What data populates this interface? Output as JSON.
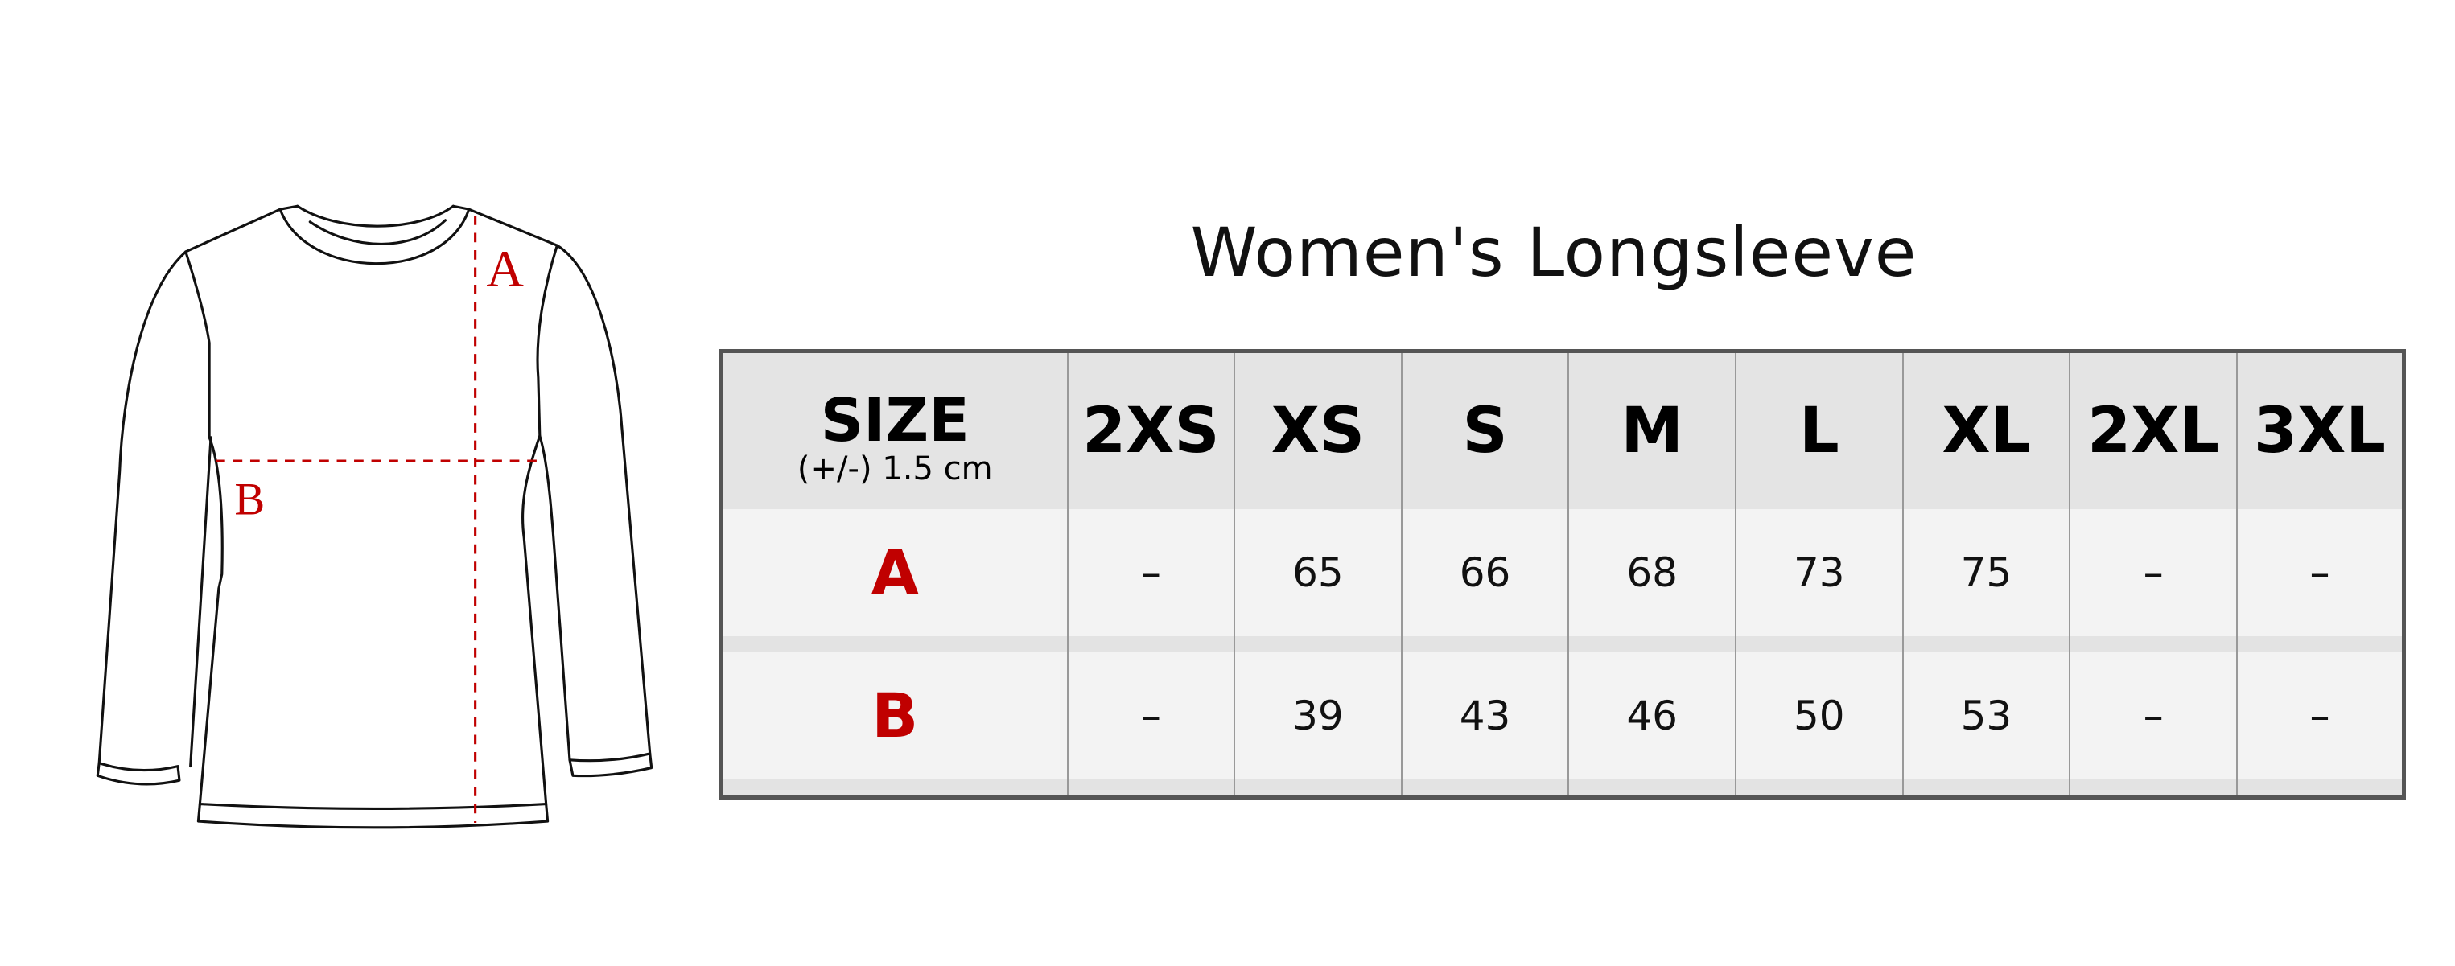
{
  "title": "Women's Longsleeve",
  "diagram": {
    "label_a": "A",
    "label_b": "B",
    "accent_color": "#c00000"
  },
  "table": {
    "header": {
      "size_label": "SIZE",
      "tolerance": "(+/-) 1.5 cm"
    },
    "sizes": [
      "2XS",
      "XS",
      "S",
      "M",
      "L",
      "XL",
      "2XL",
      "3XL"
    ],
    "rows": [
      {
        "label": "A",
        "values": [
          "–",
          "65",
          "66",
          "68",
          "73",
          "75",
          "–",
          "–"
        ]
      },
      {
        "label": "B",
        "values": [
          "–",
          "39",
          "43",
          "46",
          "50",
          "53",
          "–",
          "–"
        ]
      }
    ]
  }
}
